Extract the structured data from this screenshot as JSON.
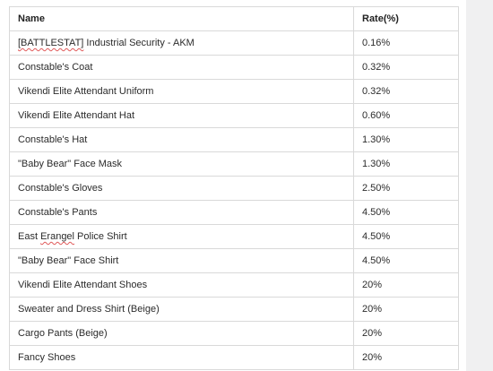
{
  "table": {
    "headers": {
      "name": "Name",
      "rate": "Rate(%)"
    },
    "rows": [
      {
        "name_pre": "",
        "name_spell": "[BATTLESTAT]",
        "name_post": " Industrial Security - AKM",
        "rate": "0.16%"
      },
      {
        "name": "Constable's Coat",
        "rate": "0.32%"
      },
      {
        "name": "Vikendi Elite Attendant Uniform",
        "rate": "0.32%"
      },
      {
        "name": "Vikendi Elite Attendant Hat",
        "rate": "0.60%"
      },
      {
        "name": "Constable's Hat",
        "rate": "1.30%"
      },
      {
        "name": "\"Baby Bear\" Face Mask",
        "rate": "1.30%"
      },
      {
        "name": "Constable's Gloves",
        "rate": "2.50%"
      },
      {
        "name": "Constable's Pants",
        "rate": "4.50%"
      },
      {
        "name_pre": "East ",
        "name_spell": "Erangel",
        "name_post": " Police Shirt",
        "rate": "4.50%"
      },
      {
        "name": "\"Baby Bear\" Face Shirt",
        "rate": "4.50%"
      },
      {
        "name": "Vikendi Elite Attendant Shoes",
        "rate": "20%"
      },
      {
        "name": "Sweater and Dress Shirt (Beige)",
        "rate": "20%"
      },
      {
        "name": "Cargo Pants (Beige)",
        "rate": "20%"
      },
      {
        "name": "Fancy Shoes",
        "rate": "20%"
      }
    ]
  }
}
